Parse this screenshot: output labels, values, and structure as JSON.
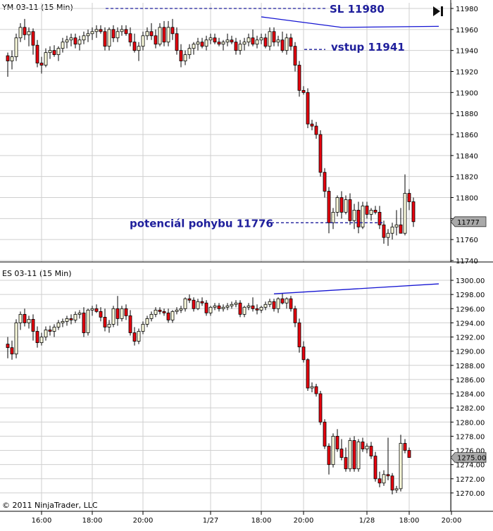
{
  "colors": {
    "up_fill": "#FFFFE0",
    "down_fill": "#E8000E",
    "candle_outline": "#000000",
    "grid": "#CFCFCF",
    "annotation": "#1F1F9C",
    "trendline": "#1414D2",
    "price_marker_bg": "#A9A9A9"
  },
  "footer": {
    "copyright": "© 2011 NinjaTrader, LLC"
  },
  "chart_data": [
    {
      "type": "candlestick",
      "title": "YM 03-11 (15 Min)",
      "ylim": [
        11740,
        11980
      ],
      "y_ticks": [
        11980,
        11960,
        11940,
        11920,
        11900,
        11880,
        11860,
        11840,
        11820,
        11800,
        11780,
        11760,
        11740
      ],
      "last_price": "11777",
      "annotations": [
        {
          "label": "SL 11980",
          "price": 11980
        },
        {
          "label": "vstup 11941",
          "price": 11941
        },
        {
          "label": "potenciál pohybu 11776",
          "price": 11776
        }
      ],
      "trendline": [
        {
          "bar": 60,
          "price": 11972
        },
        {
          "bar": 79,
          "price": 11962
        },
        {
          "bar": 102,
          "price": 11963
        }
      ],
      "ohlc": [
        [
          11935,
          11938,
          11915,
          11930
        ],
        [
          11930,
          11940,
          11922,
          11934
        ],
        [
          11934,
          11956,
          11930,
          11952
        ],
        [
          11952,
          11966,
          11948,
          11962
        ],
        [
          11962,
          11970,
          11950,
          11955
        ],
        [
          11955,
          11962,
          11944,
          11958
        ],
        [
          11958,
          11961,
          11936,
          11945
        ],
        [
          11945,
          11950,
          11924,
          11928
        ],
        [
          11928,
          11934,
          11918,
          11926
        ],
        [
          11926,
          11942,
          11924,
          11938
        ],
        [
          11938,
          11944,
          11932,
          11940
        ],
        [
          11940,
          11945,
          11934,
          11936
        ],
        [
          11936,
          11944,
          11930,
          11942
        ],
        [
          11942,
          11952,
          11938,
          11948
        ],
        [
          11948,
          11954,
          11942,
          11950
        ],
        [
          11950,
          11956,
          11944,
          11952
        ],
        [
          11952,
          11956,
          11942,
          11946
        ],
        [
          11946,
          11954,
          11940,
          11950
        ],
        [
          11950,
          11958,
          11946,
          11954
        ],
        [
          11954,
          11960,
          11948,
          11956
        ],
        [
          11956,
          11962,
          11950,
          11958
        ],
        [
          11958,
          11964,
          11952,
          11960
        ],
        [
          11960,
          11964,
          11956,
          11958
        ],
        [
          11958,
          11962,
          11940,
          11944
        ],
        [
          11944,
          11962,
          11940,
          11960
        ],
        [
          11960,
          11964,
          11948,
          11952
        ],
        [
          11952,
          11962,
          11948,
          11958
        ],
        [
          11958,
          11964,
          11954,
          11960
        ],
        [
          11960,
          11964,
          11954,
          11956
        ],
        [
          11956,
          11962,
          11944,
          11948
        ],
        [
          11948,
          11956,
          11938,
          11940
        ],
        [
          11940,
          11948,
          11930,
          11944
        ],
        [
          11944,
          11958,
          11940,
          11954
        ],
        [
          11954,
          11962,
          11950,
          11958
        ],
        [
          11958,
          11966,
          11950,
          11954
        ],
        [
          11954,
          11960,
          11942,
          11946
        ],
        [
          11946,
          11966,
          11944,
          11962
        ],
        [
          11962,
          11968,
          11944,
          11948
        ],
        [
          11948,
          11968,
          11944,
          11962
        ],
        [
          11962,
          11970,
          11950,
          11956
        ],
        [
          11956,
          11962,
          11936,
          11940
        ],
        [
          11940,
          11946,
          11924,
          11930
        ],
        [
          11930,
          11940,
          11926,
          11936
        ],
        [
          11936,
          11946,
          11932,
          11942
        ],
        [
          11942,
          11948,
          11936,
          11946
        ],
        [
          11946,
          11952,
          11940,
          11948
        ],
        [
          11948,
          11952,
          11942,
          11944
        ],
        [
          11944,
          11954,
          11940,
          11950
        ],
        [
          11950,
          11956,
          11946,
          11952
        ],
        [
          11952,
          11956,
          11946,
          11948
        ],
        [
          11948,
          11952,
          11944,
          11946
        ],
        [
          11946,
          11950,
          11940,
          11948
        ],
        [
          11948,
          11956,
          11944,
          11950
        ],
        [
          11950,
          11954,
          11946,
          11948
        ],
        [
          11948,
          11952,
          11936,
          11940
        ],
        [
          11940,
          11950,
          11936,
          11946
        ],
        [
          11946,
          11952,
          11940,
          11948
        ],
        [
          11948,
          11956,
          11944,
          11952
        ],
        [
          11952,
          11960,
          11944,
          11946
        ],
        [
          11946,
          11954,
          11942,
          11950
        ],
        [
          11950,
          11956,
          11946,
          11952
        ],
        [
          11952,
          11956,
          11942,
          11944
        ],
        [
          11944,
          11962,
          11940,
          11958
        ],
        [
          11958,
          11962,
          11944,
          11948
        ],
        [
          11948,
          11954,
          11944,
          11950
        ],
        [
          11950,
          11958,
          11938,
          11940
        ],
        [
          11940,
          11956,
          11936,
          11952
        ],
        [
          11952,
          11956,
          11940,
          11944
        ],
        [
          11944,
          11948,
          11920,
          11926
        ],
        [
          11926,
          11930,
          11896,
          11902
        ],
        [
          11902,
          11906,
          11898,
          11900
        ],
        [
          11900,
          11904,
          11866,
          11870
        ],
        [
          11870,
          11874,
          11864,
          11868
        ],
        [
          11868,
          11872,
          11856,
          11860
        ],
        [
          11860,
          11864,
          11820,
          11824
        ],
        [
          11824,
          11828,
          11800,
          11806
        ],
        [
          11806,
          11810,
          11766,
          11776
        ],
        [
          11776,
          11790,
          11770,
          11786
        ],
        [
          11786,
          11802,
          11782,
          11800
        ],
        [
          11800,
          11806,
          11780,
          11786
        ],
        [
          11786,
          11802,
          11784,
          11798
        ],
        [
          11798,
          11804,
          11774,
          11778
        ],
        [
          11778,
          11794,
          11770,
          11788
        ],
        [
          11788,
          11796,
          11766,
          11772
        ],
        [
          11772,
          11796,
          11770,
          11792
        ],
        [
          11792,
          11796,
          11780,
          11784
        ],
        [
          11784,
          11790,
          11778,
          11788
        ],
        [
          11788,
          11792,
          11784,
          11786
        ],
        [
          11786,
          11792,
          11770,
          11774
        ],
        [
          11774,
          11778,
          11756,
          11762
        ],
        [
          11762,
          11770,
          11754,
          11766
        ],
        [
          11766,
          11776,
          11760,
          11772
        ],
        [
          11772,
          11788,
          11764,
          11774
        ],
        [
          11774,
          11790,
          11766,
          11766
        ],
        [
          11766,
          11822,
          11764,
          11804
        ],
        [
          11804,
          11808,
          11788,
          11796
        ],
        [
          11796,
          11800,
          11772,
          11777
        ]
      ]
    },
    {
      "type": "candlestick",
      "title": "ES 03-11 (15 Min)",
      "ylim": [
        1269.0,
        1300.8
      ],
      "y_ticks": [
        "1300.00",
        "1298.00",
        "1296.00",
        "1294.00",
        "1292.00",
        "1290.00",
        "1288.00",
        "1286.00",
        "1284.00",
        "1282.00",
        "1280.00",
        "1278.00",
        "1276.00",
        "1274.00",
        "1272.00",
        "1270.00"
      ],
      "last_price": "1275.00",
      "trendline": [
        {
          "bar": 63,
          "price": 1298.1
        },
        {
          "bar": 102,
          "price": 1299.5
        }
      ],
      "ohlc": [
        [
          1291.0,
          1292.0,
          1289.0,
          1290.5
        ],
        [
          1290.5,
          1291.5,
          1288.8,
          1289.6
        ],
        [
          1289.6,
          1294.5,
          1289.0,
          1294.0
        ],
        [
          1294.0,
          1295.6,
          1293.0,
          1295.2
        ],
        [
          1295.2,
          1296.0,
          1293.5,
          1294.0
        ],
        [
          1294.0,
          1295.0,
          1293.2,
          1294.5
        ],
        [
          1294.5,
          1295.2,
          1291.5,
          1292.8
        ],
        [
          1292.8,
          1293.5,
          1290.5,
          1291.2
        ],
        [
          1291.2,
          1292.6,
          1290.8,
          1292.0
        ],
        [
          1292.0,
          1293.5,
          1291.5,
          1293.0
        ],
        [
          1293.0,
          1293.6,
          1292.2,
          1292.8
        ],
        [
          1292.8,
          1293.8,
          1292.0,
          1293.4
        ],
        [
          1293.4,
          1294.4,
          1293.0,
          1294.0
        ],
        [
          1294.0,
          1294.6,
          1293.4,
          1294.2
        ],
        [
          1294.2,
          1295.0,
          1293.6,
          1294.6
        ],
        [
          1294.6,
          1295.2,
          1293.8,
          1294.4
        ],
        [
          1294.4,
          1295.6,
          1294.0,
          1295.2
        ],
        [
          1295.2,
          1295.8,
          1294.6,
          1295.4
        ],
        [
          1295.4,
          1296.2,
          1292.0,
          1292.6
        ],
        [
          1292.6,
          1296.0,
          1292.2,
          1295.8
        ],
        [
          1295.8,
          1296.4,
          1295.0,
          1296.0
        ],
        [
          1296.0,
          1296.6,
          1295.4,
          1295.6
        ],
        [
          1295.6,
          1296.2,
          1294.2,
          1294.8
        ],
        [
          1294.8,
          1296.0,
          1292.8,
          1293.4
        ],
        [
          1293.4,
          1294.4,
          1292.6,
          1293.8
        ],
        [
          1293.8,
          1296.4,
          1293.4,
          1296.0
        ],
        [
          1296.0,
          1297.8,
          1293.6,
          1294.6
        ],
        [
          1294.6,
          1296.4,
          1294.2,
          1296.0
        ],
        [
          1296.0,
          1296.6,
          1294.4,
          1295.0
        ],
        [
          1295.0,
          1295.8,
          1292.2,
          1292.6
        ],
        [
          1292.6,
          1293.4,
          1290.8,
          1291.4
        ],
        [
          1291.4,
          1293.2,
          1291.0,
          1292.8
        ],
        [
          1292.8,
          1294.2,
          1292.4,
          1293.8
        ],
        [
          1293.8,
          1295.0,
          1293.4,
          1294.6
        ],
        [
          1294.6,
          1295.6,
          1294.2,
          1295.2
        ],
        [
          1295.2,
          1296.2,
          1294.8,
          1295.8
        ],
        [
          1295.8,
          1296.2,
          1295.2,
          1295.6
        ],
        [
          1295.6,
          1296.0,
          1295.0,
          1295.4
        ],
        [
          1295.4,
          1296.0,
          1294.0,
          1294.4
        ],
        [
          1294.4,
          1295.8,
          1294.0,
          1295.6
        ],
        [
          1295.6,
          1296.2,
          1295.2,
          1295.8
        ],
        [
          1295.8,
          1296.4,
          1295.4,
          1296.0
        ],
        [
          1296.0,
          1297.6,
          1295.6,
          1297.4
        ],
        [
          1297.4,
          1298.0,
          1296.8,
          1297.2
        ],
        [
          1297.2,
          1297.6,
          1295.6,
          1296.0
        ],
        [
          1296.0,
          1297.4,
          1295.8,
          1297.0
        ],
        [
          1297.0,
          1297.6,
          1296.4,
          1296.8
        ],
        [
          1296.8,
          1297.2,
          1295.0,
          1295.4
        ],
        [
          1295.4,
          1296.4,
          1295.0,
          1296.2
        ],
        [
          1296.2,
          1296.8,
          1295.8,
          1296.4
        ],
        [
          1296.4,
          1296.8,
          1295.6,
          1296.0
        ],
        [
          1296.0,
          1296.6,
          1295.6,
          1296.2
        ],
        [
          1296.2,
          1296.8,
          1295.8,
          1296.4
        ],
        [
          1296.4,
          1297.0,
          1296.0,
          1296.6
        ],
        [
          1296.6,
          1297.2,
          1296.2,
          1296.8
        ],
        [
          1296.8,
          1297.2,
          1294.8,
          1295.2
        ],
        [
          1295.2,
          1296.4,
          1294.8,
          1296.2
        ],
        [
          1296.2,
          1296.8,
          1295.8,
          1296.4
        ],
        [
          1296.4,
          1297.6,
          1295.6,
          1296.0
        ],
        [
          1296.0,
          1296.6,
          1295.2,
          1295.8
        ],
        [
          1295.8,
          1296.4,
          1295.4,
          1296.2
        ],
        [
          1296.2,
          1297.0,
          1295.8,
          1296.6
        ],
        [
          1296.6,
          1297.4,
          1296.2,
          1297.0
        ],
        [
          1297.0,
          1297.4,
          1295.6,
          1296.0
        ],
        [
          1296.0,
          1297.6,
          1295.4,
          1297.4
        ],
        [
          1297.4,
          1298.2,
          1296.6,
          1296.8
        ],
        [
          1296.8,
          1297.6,
          1296.0,
          1297.4
        ],
        [
          1297.4,
          1297.8,
          1295.6,
          1296.0
        ],
        [
          1296.0,
          1296.4,
          1293.4,
          1294.0
        ],
        [
          1294.0,
          1294.6,
          1289.8,
          1290.6
        ],
        [
          1290.6,
          1291.4,
          1288.4,
          1288.8
        ],
        [
          1288.8,
          1289.0,
          1284.4,
          1284.8
        ],
        [
          1284.8,
          1285.6,
          1284.2,
          1285.0
        ],
        [
          1285.0,
          1285.4,
          1283.6,
          1284.0
        ],
        [
          1284.0,
          1284.4,
          1279.6,
          1280.0
        ],
        [
          1280.0,
          1280.4,
          1276.2,
          1276.6
        ],
        [
          1276.6,
          1277.0,
          1272.6,
          1274.0
        ],
        [
          1274.0,
          1278.4,
          1273.6,
          1278.0
        ],
        [
          1278.0,
          1279.0,
          1275.8,
          1276.2
        ],
        [
          1276.2,
          1277.6,
          1274.6,
          1275.0
        ],
        [
          1275.0,
          1276.4,
          1273.0,
          1273.4
        ],
        [
          1273.4,
          1277.8,
          1273.0,
          1277.4
        ],
        [
          1277.4,
          1278.0,
          1273.0,
          1273.4
        ],
        [
          1273.4,
          1277.6,
          1273.0,
          1277.2
        ],
        [
          1277.2,
          1277.8,
          1275.8,
          1276.2
        ],
        [
          1276.2,
          1277.0,
          1275.6,
          1276.6
        ],
        [
          1276.6,
          1277.2,
          1274.8,
          1275.2
        ],
        [
          1275.2,
          1275.8,
          1271.6,
          1272.0
        ],
        [
          1272.0,
          1273.0,
          1270.8,
          1271.4
        ],
        [
          1271.4,
          1273.2,
          1271.0,
          1272.6
        ],
        [
          1272.6,
          1277.8,
          1271.8,
          1272.4
        ],
        [
          1272.4,
          1272.8,
          1269.8,
          1270.4
        ],
        [
          1270.4,
          1271.0,
          1270.0,
          1270.6
        ],
        [
          1270.6,
          1278.2,
          1270.2,
          1277.0
        ],
        [
          1277.0,
          1277.6,
          1275.6,
          1276.0
        ],
        [
          1276.0,
          1276.4,
          1275.0,
          1275.0
        ]
      ]
    }
  ],
  "x_axis": {
    "labels": [
      {
        "text": "16:00",
        "bar": 8
      },
      {
        "text": "18:00",
        "bar": 20
      },
      {
        "text": "20:00",
        "bar": 32
      },
      {
        "text": "1/27",
        "bar": 48
      },
      {
        "text": "18:00",
        "bar": 60
      },
      {
        "text": "20:00",
        "bar": 70
      },
      {
        "text": "1/28",
        "bar": 85
      },
      {
        "text": "18:00",
        "bar": 95
      },
      {
        "text": "20:00",
        "bar": 105
      }
    ]
  }
}
